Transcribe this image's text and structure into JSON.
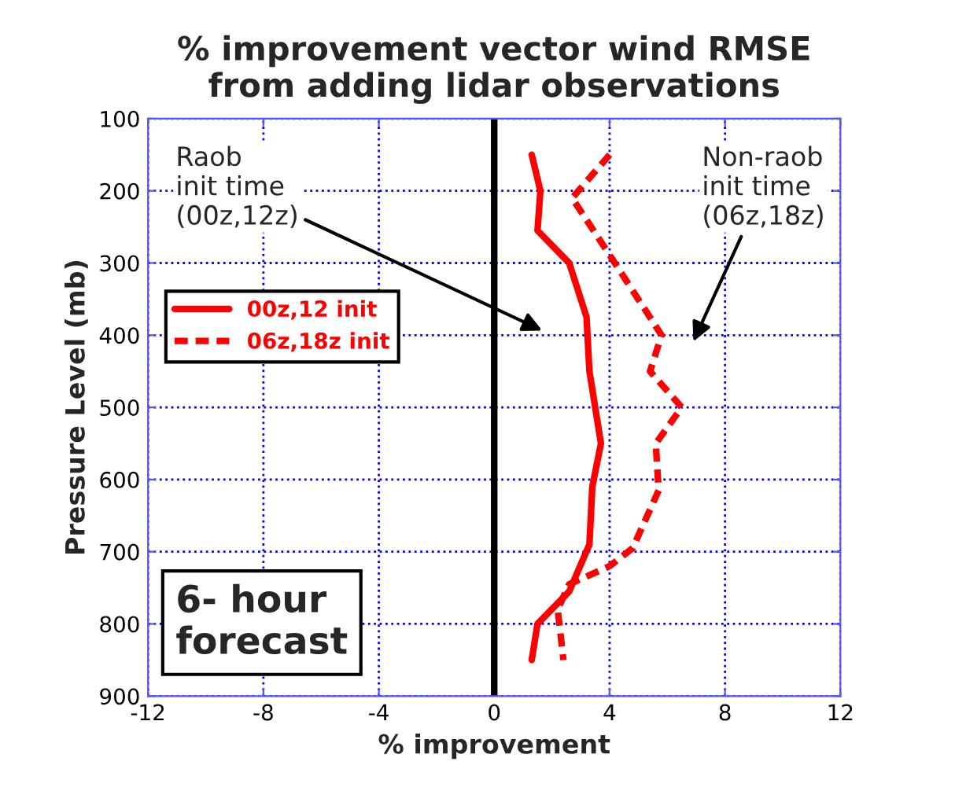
{
  "chart_data": {
    "type": "line",
    "title": "% improvement vector wind RMSE\nfrom adding lidar observations",
    "xlabel": "% improvement",
    "ylabel": "Pressure Level (mb)",
    "xlim": [
      -12,
      12
    ],
    "xticks": [
      -12,
      -8,
      -4,
      0,
      4,
      8,
      12
    ],
    "ylim": [
      900,
      100
    ],
    "yticks": [
      100,
      200,
      300,
      400,
      500,
      600,
      700,
      800,
      900
    ],
    "grid": true,
    "legend": "left",
    "series": [
      {
        "name": "00z,12 init",
        "color": "#ff0000",
        "line_style": "solid",
        "x": [
          1.3,
          1.6,
          1.5,
          2.6,
          3.2,
          3.3,
          3.7,
          3.4,
          3.3,
          2.6,
          1.5,
          1.3
        ],
        "values": [
          150,
          200,
          255,
          300,
          375,
          450,
          550,
          610,
          690,
          755,
          800,
          850
        ]
      },
      {
        "name": "06z,18z init",
        "color": "#ff0000",
        "line_style": "dashed",
        "x": [
          4.0,
          2.7,
          4.1,
          5.8,
          5.4,
          6.5,
          5.6,
          5.7,
          4.8,
          4.0,
          2.6,
          2.2,
          2.4
        ],
        "values": [
          150,
          210,
          295,
          400,
          450,
          500,
          550,
          615,
          695,
          720,
          745,
          780,
          850
        ]
      }
    ],
    "ref_lines": [
      {
        "axis": "x",
        "value": 0,
        "color": "#000000"
      }
    ],
    "annotations": [
      "Raob\ninit time\n(00z,12z)",
      "Non-raob\ninit time\n(06z,18z)",
      "6- hour\nforecast"
    ]
  }
}
